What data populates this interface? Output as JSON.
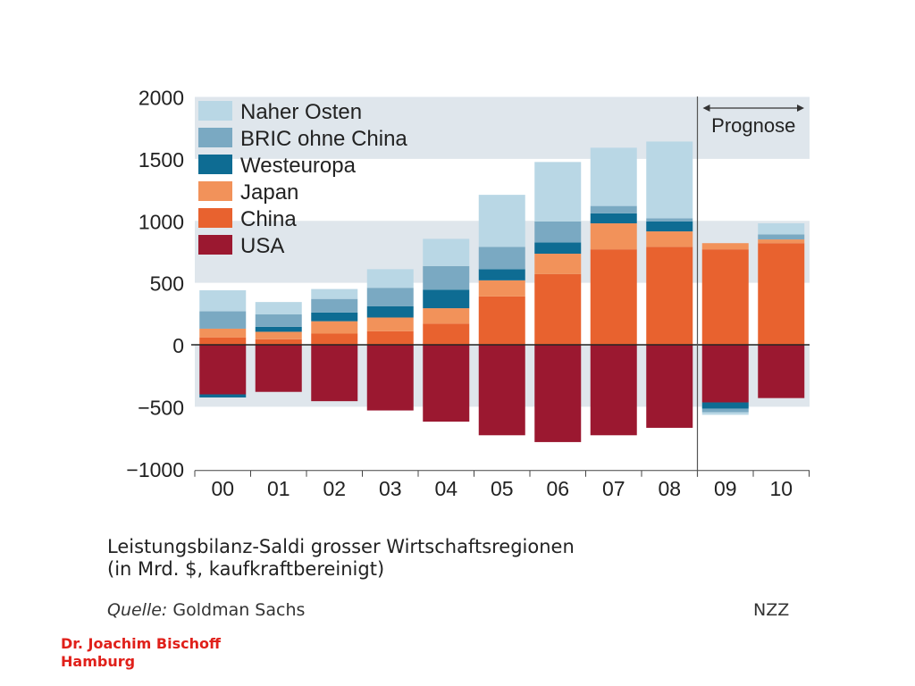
{
  "chart_data": {
    "type": "bar",
    "stacked": true,
    "categories": [
      "00",
      "01",
      "02",
      "03",
      "04",
      "05",
      "06",
      "07",
      "08",
      "09",
      "10"
    ],
    "forecast_label": "Prognose",
    "forecast_from": "09",
    "ylim": [
      -1000,
      2000
    ],
    "yticks": [
      "2000",
      "1500",
      "1000",
      "500",
      "0",
      "−500",
      "−1000"
    ],
    "ytick_values": [
      2000,
      1500,
      1000,
      500,
      0,
      -500,
      -1000
    ],
    "grid": "alternating horizontal bands",
    "legend_position": "top-left",
    "series": [
      {
        "name": "USA",
        "color": "#9b1830",
        "values": [
          -400,
          -380,
          -455,
          -530,
          -620,
          -730,
          -785,
          -730,
          -670,
          -465,
          -430
        ]
      },
      {
        "name": "China",
        "color": "#e8622f",
        "values": [
          60,
          45,
          90,
          110,
          170,
          390,
          570,
          770,
          790,
          770,
          820
        ]
      },
      {
        "name": "Japan",
        "color": "#f2925a",
        "values": [
          70,
          60,
          100,
          110,
          125,
          130,
          165,
          210,
          125,
          50,
          30
        ]
      },
      {
        "name": "Westeuropa",
        "color": "#0e6c93",
        "values": [
          -25,
          40,
          70,
          90,
          150,
          90,
          90,
          80,
          80,
          -50,
          0
        ]
      },
      {
        "name": "BRIC ohne China",
        "color": "#7aa9c2",
        "values": [
          140,
          100,
          110,
          150,
          190,
          180,
          170,
          60,
          25,
          -30,
          40
        ]
      },
      {
        "name": "Naher Osten",
        "color": "#b9d7e5",
        "values": [
          170,
          100,
          80,
          150,
          220,
          420,
          480,
          470,
          620,
          -20,
          90
        ]
      }
    ],
    "legend_order": [
      "Naher Osten",
      "BRIC ohne China",
      "Westeuropa",
      "Japan",
      "China",
      "USA"
    ]
  },
  "caption": {
    "line1": "Leistungsbilanz-Saldi grosser Wirtschaftsregionen",
    "line2": "(in Mrd. $, kaufkraftbereinigt)"
  },
  "source": {
    "label": "Quelle:",
    "value": "Goldman Sachs"
  },
  "publisher": "NZZ",
  "author": {
    "line1": "Dr. Joachim Bischoff",
    "line2": "Hamburg"
  }
}
